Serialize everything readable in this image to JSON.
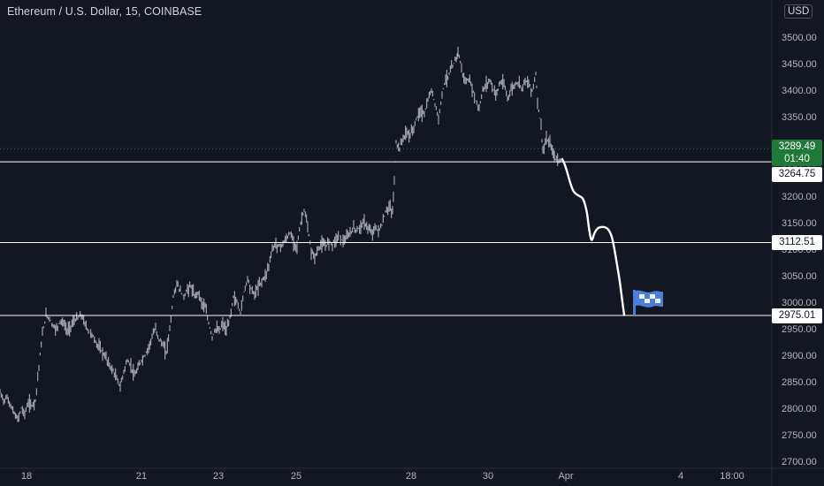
{
  "header": {
    "symbol_title": "Ethereum / U.S. Dollar, 15, COINBASE",
    "currency": "USD"
  },
  "chart_data": {
    "type": "line",
    "ylim": [
      2700,
      3550
    ],
    "y_ticks": [
      2700,
      2750,
      2800,
      2850,
      2900,
      2950,
      3000,
      3050,
      3100,
      3150,
      3200,
      3250,
      3300,
      3350,
      3400,
      3450,
      3500
    ],
    "y_tick_labels": [
      "2700.00",
      "2750.00",
      "2800.00",
      "2850.00",
      "2900.00",
      "2950.00",
      "3000.00",
      "3050.00",
      "3100.00",
      "3150.00",
      "3200.00",
      "3250.00",
      "3300.00",
      "3350.00",
      "3400.00",
      "3450.00",
      "3500.00"
    ],
    "x_ticks": [
      "18",
      "21",
      "23",
      "25",
      "28",
      "30",
      "Apr",
      "4",
      "18:00"
    ],
    "last_price": {
      "value": "3289.49",
      "countdown": "01:40",
      "color": "#1f7a3a"
    },
    "horizontal_levels": [
      {
        "value": 3264.75,
        "label": "3264.75"
      },
      {
        "value": 3112.51,
        "label": "3112.51"
      },
      {
        "value": 2975.01,
        "label": "2975.01"
      }
    ],
    "series": [
      {
        "style": "price-bars",
        "color": "#c8ccd6",
        "points": [
          [
            0,
            2830
          ],
          [
            4,
            2815
          ],
          [
            8,
            2820
          ],
          [
            12,
            2805
          ],
          [
            16,
            2790
          ],
          [
            20,
            2778
          ],
          [
            24,
            2800
          ],
          [
            28,
            2790
          ],
          [
            32,
            2810
          ],
          [
            36,
            2805
          ],
          [
            40,
            2815
          ],
          [
            44,
            2880
          ],
          [
            48,
            2940
          ],
          [
            52,
            2975
          ],
          [
            56,
            2970
          ],
          [
            60,
            2955
          ],
          [
            64,
            2950
          ],
          [
            68,
            2965
          ],
          [
            72,
            2960
          ],
          [
            76,
            2945
          ],
          [
            80,
            2955
          ],
          [
            84,
            2965
          ],
          [
            88,
            2970
          ],
          [
            92,
            2975
          ],
          [
            96,
            2960
          ],
          [
            100,
            2945
          ],
          [
            104,
            2940
          ],
          [
            108,
            2925
          ],
          [
            112,
            2915
          ],
          [
            116,
            2905
          ],
          [
            120,
            2895
          ],
          [
            124,
            2880
          ],
          [
            128,
            2870
          ],
          [
            132,
            2855
          ],
          [
            136,
            2840
          ],
          [
            140,
            2870
          ],
          [
            144,
            2890
          ],
          [
            148,
            2880
          ],
          [
            152,
            2860
          ],
          [
            156,
            2875
          ],
          [
            160,
            2890
          ],
          [
            164,
            2900
          ],
          [
            168,
            2915
          ],
          [
            172,
            2935
          ],
          [
            176,
            2950
          ],
          [
            180,
            2930
          ],
          [
            184,
            2920
          ],
          [
            188,
            2905
          ],
          [
            192,
            2950
          ],
          [
            196,
            3010
          ],
          [
            200,
            3035
          ],
          [
            204,
            3020
          ],
          [
            208,
            3010
          ],
          [
            212,
            3025
          ],
          [
            216,
            3030
          ],
          [
            220,
            3010
          ],
          [
            224,
            3020
          ],
          [
            228,
            3000
          ],
          [
            232,
            2990
          ],
          [
            236,
            2960
          ],
          [
            240,
            2935
          ],
          [
            244,
            2950
          ],
          [
            248,
            2945
          ],
          [
            252,
            2960
          ],
          [
            256,
            2945
          ],
          [
            260,
            2970
          ],
          [
            264,
            3010
          ],
          [
            268,
            3000
          ],
          [
            272,
            2980
          ],
          [
            276,
            3020
          ],
          [
            280,
            3045
          ],
          [
            284,
            3025
          ],
          [
            288,
            3015
          ],
          [
            292,
            3030
          ],
          [
            296,
            3040
          ],
          [
            300,
            3050
          ],
          [
            304,
            3070
          ],
          [
            308,
            3100
          ],
          [
            312,
            3110
          ],
          [
            316,
            3105
          ],
          [
            320,
            3110
          ],
          [
            324,
            3120
          ],
          [
            328,
            3130
          ],
          [
            332,
            3115
          ],
          [
            336,
            3105
          ],
          [
            340,
            3150
          ],
          [
            344,
            3175
          ],
          [
            348,
            3140
          ],
          [
            352,
            3095
          ],
          [
            356,
            3085
          ],
          [
            360,
            3100
          ],
          [
            364,
            3110
          ],
          [
            368,
            3105
          ],
          [
            372,
            3115
          ],
          [
            376,
            3110
          ],
          [
            380,
            3120
          ],
          [
            384,
            3125
          ],
          [
            388,
            3115
          ],
          [
            392,
            3120
          ],
          [
            396,
            3130
          ],
          [
            400,
            3140
          ],
          [
            404,
            3135
          ],
          [
            408,
            3145
          ],
          [
            412,
            3150
          ],
          [
            416,
            3140
          ],
          [
            420,
            3130
          ],
          [
            424,
            3140
          ],
          [
            428,
            3135
          ],
          [
            432,
            3145
          ],
          [
            436,
            3170
          ],
          [
            440,
            3180
          ],
          [
            444,
            3170
          ],
          [
            446,
            3230
          ],
          [
            448,
            3300
          ],
          [
            452,
            3290
          ],
          [
            456,
            3310
          ],
          [
            460,
            3320
          ],
          [
            464,
            3315
          ],
          [
            468,
            3330
          ],
          [
            472,
            3350
          ],
          [
            476,
            3360
          ],
          [
            480,
            3355
          ],
          [
            484,
            3380
          ],
          [
            488,
            3400
          ],
          [
            492,
            3375
          ],
          [
            496,
            3345
          ],
          [
            500,
            3395
          ],
          [
            504,
            3420
          ],
          [
            508,
            3430
          ],
          [
            512,
            3445
          ],
          [
            516,
            3460
          ],
          [
            518,
            3475
          ],
          [
            522,
            3440
          ],
          [
            526,
            3415
          ],
          [
            530,
            3420
          ],
          [
            534,
            3405
          ],
          [
            538,
            3380
          ],
          [
            542,
            3365
          ],
          [
            546,
            3400
          ],
          [
            550,
            3410
          ],
          [
            554,
            3420
          ],
          [
            558,
            3400
          ],
          [
            562,
            3395
          ],
          [
            566,
            3415
          ],
          [
            570,
            3410
          ],
          [
            574,
            3385
          ],
          [
            578,
            3400
          ],
          [
            582,
            3410
          ],
          [
            586,
            3415
          ],
          [
            590,
            3405
          ],
          [
            594,
            3420
          ],
          [
            598,
            3410
          ],
          [
            602,
            3400
          ],
          [
            606,
            3430
          ],
          [
            608,
            3380
          ],
          [
            612,
            3330
          ],
          [
            614,
            3285
          ],
          [
            618,
            3305
          ],
          [
            622,
            3300
          ],
          [
            626,
            3280
          ],
          [
            628,
            3270
          ],
          [
            632,
            3268
          ],
          [
            636,
            3270
          ]
        ]
      },
      {
        "style": "projection",
        "color": "#ffffff",
        "points": [
          [
            636,
            3270
          ],
          [
            640,
            3255
          ],
          [
            644,
            3230
          ],
          [
            648,
            3210
          ],
          [
            652,
            3203
          ],
          [
            656,
            3200
          ],
          [
            660,
            3195
          ],
          [
            664,
            3170
          ],
          [
            666,
            3140
          ],
          [
            669,
            3112
          ],
          [
            672,
            3130
          ],
          [
            676,
            3140
          ],
          [
            680,
            3142
          ],
          [
            684,
            3142
          ],
          [
            688,
            3138
          ],
          [
            692,
            3125
          ],
          [
            695,
            3100
          ],
          [
            698,
            3070
          ],
          [
            701,
            3040
          ],
          [
            704,
            3000
          ],
          [
            706,
            2976
          ]
        ]
      }
    ]
  }
}
